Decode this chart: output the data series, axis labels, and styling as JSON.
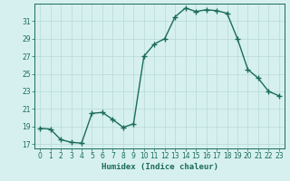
{
  "x": [
    0,
    1,
    2,
    3,
    4,
    5,
    6,
    7,
    8,
    9,
    10,
    11,
    12,
    13,
    14,
    15,
    16,
    17,
    18,
    19,
    20,
    21,
    22,
    23
  ],
  "y": [
    18.8,
    18.7,
    17.5,
    17.2,
    17.1,
    20.5,
    20.6,
    19.8,
    18.9,
    19.3,
    27.0,
    28.4,
    29.0,
    31.5,
    32.5,
    32.1,
    32.3,
    32.2,
    31.9,
    29.0,
    25.5,
    24.5,
    23.0,
    22.5
  ],
  "line_color": "#1a6b5a",
  "marker": "+",
  "marker_size": 4,
  "bg_color": "#d6f0f0",
  "grid_color": "#b8d8d8",
  "xlabel": "Humidex (Indice chaleur)",
  "ylim": [
    16.5,
    33.0
  ],
  "xlim": [
    -0.5,
    23.5
  ],
  "yticks": [
    17,
    19,
    21,
    23,
    25,
    27,
    29,
    31
  ],
  "xticks": [
    0,
    1,
    2,
    3,
    4,
    5,
    6,
    7,
    8,
    9,
    10,
    11,
    12,
    13,
    14,
    15,
    16,
    17,
    18,
    19,
    20,
    21,
    22,
    23
  ],
  "xlabel_fontsize": 6.5,
  "tick_fontsize": 5.5,
  "line_width": 1.0
}
